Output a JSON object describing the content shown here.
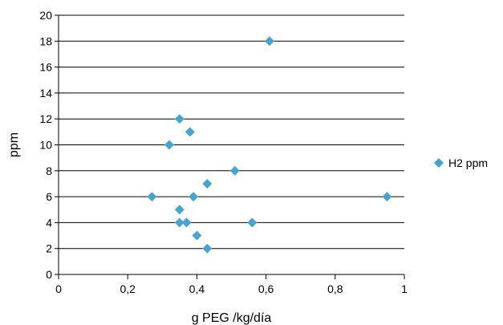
{
  "chart_data": {
    "type": "scatter",
    "title": "",
    "xlabel": "g PEG /kg/día",
    "ylabel": "ppm",
    "xlim": [
      0,
      1
    ],
    "ylim": [
      0,
      20
    ],
    "x_ticks": [
      0,
      0.2,
      0.4,
      0.6,
      0.8,
      1
    ],
    "x_tick_labels": [
      "0",
      "0,2",
      "0,4",
      "0,6",
      "0,8",
      "1"
    ],
    "y_ticks": [
      0,
      2,
      4,
      6,
      8,
      10,
      12,
      14,
      16,
      18,
      20
    ],
    "y_tick_labels": [
      "0",
      "2",
      "4",
      "6",
      "8",
      "10",
      "12",
      "14",
      "16",
      "18",
      "20"
    ],
    "grid": "horizontal",
    "legend_position": "right",
    "series": [
      {
        "name": "H2 ppm",
        "color": "#4BA3C8",
        "marker": "diamond",
        "points": [
          {
            "x": 0.61,
            "y": 18
          },
          {
            "x": 0.35,
            "y": 12
          },
          {
            "x": 0.38,
            "y": 11
          },
          {
            "x": 0.32,
            "y": 10
          },
          {
            "x": 0.51,
            "y": 8
          },
          {
            "x": 0.43,
            "y": 7
          },
          {
            "x": 0.27,
            "y": 6
          },
          {
            "x": 0.39,
            "y": 6
          },
          {
            "x": 0.95,
            "y": 6
          },
          {
            "x": 0.35,
            "y": 5
          },
          {
            "x": 0.35,
            "y": 4
          },
          {
            "x": 0.37,
            "y": 4
          },
          {
            "x": 0.56,
            "y": 4
          },
          {
            "x": 0.4,
            "y": 3
          },
          {
            "x": 0.43,
            "y": 2
          }
        ]
      }
    ]
  }
}
